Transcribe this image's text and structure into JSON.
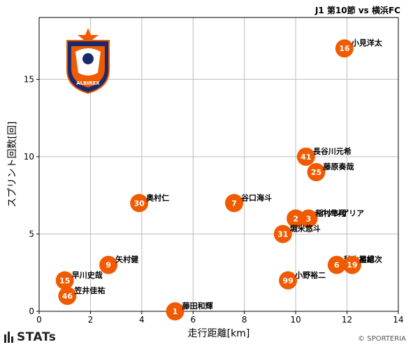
{
  "title": "J1 第10節 vs 横浜FC",
  "chart_data": {
    "type": "scatter",
    "xlabel": "走行距離[km]",
    "ylabel": "スプリント回数[回]",
    "xlim": [
      0,
      14
    ],
    "ylim": [
      0,
      19
    ],
    "xticks": [
      0,
      2,
      4,
      6,
      8,
      10,
      12,
      14
    ],
    "yticks": [
      0,
      5,
      10,
      15
    ],
    "grid": true,
    "marker_color": "#f05a00",
    "points": [
      {
        "num": "16",
        "name": "小見洋太",
        "x": 11.9,
        "y": 17
      },
      {
        "num": "41",
        "name": "長谷川元希",
        "x": 10.4,
        "y": 10
      },
      {
        "num": "25",
        "name": "藤原奏哉",
        "x": 10.8,
        "y": 9
      },
      {
        "num": "30",
        "name": "奥村仁",
        "x": 3.9,
        "y": 7
      },
      {
        "num": "7",
        "name": "谷口海斗",
        "x": 7.6,
        "y": 7
      },
      {
        "num": "2",
        "name": "ジェイソンゲリア",
        "x": 10.0,
        "y": 6
      },
      {
        "num": "3",
        "name": "稲村隼翔",
        "x": 10.5,
        "y": 6
      },
      {
        "num": "31",
        "name": "堀米悠斗",
        "x": 9.5,
        "y": 5
      },
      {
        "num": "9",
        "name": "矢村健",
        "x": 2.7,
        "y": 3
      },
      {
        "num": "6",
        "name": "秋山裕紀",
        "x": 11.6,
        "y": 3
      },
      {
        "num": "19",
        "name": "星雄次",
        "x": 12.2,
        "y": 3
      },
      {
        "num": "15",
        "name": "早川史哉",
        "x": 1.0,
        "y": 2
      },
      {
        "num": "99",
        "name": "小野裕二",
        "x": 9.7,
        "y": 2
      },
      {
        "num": "46",
        "name": "笠井佳祐",
        "x": 1.1,
        "y": 1
      },
      {
        "num": "1",
        "name": "藤田和輝",
        "x": 5.3,
        "y": 0
      }
    ]
  },
  "logo": {
    "brand_text": "STATs",
    "emblem_text": "ALBIREX"
  },
  "copyright": "© SPORTERIA"
}
